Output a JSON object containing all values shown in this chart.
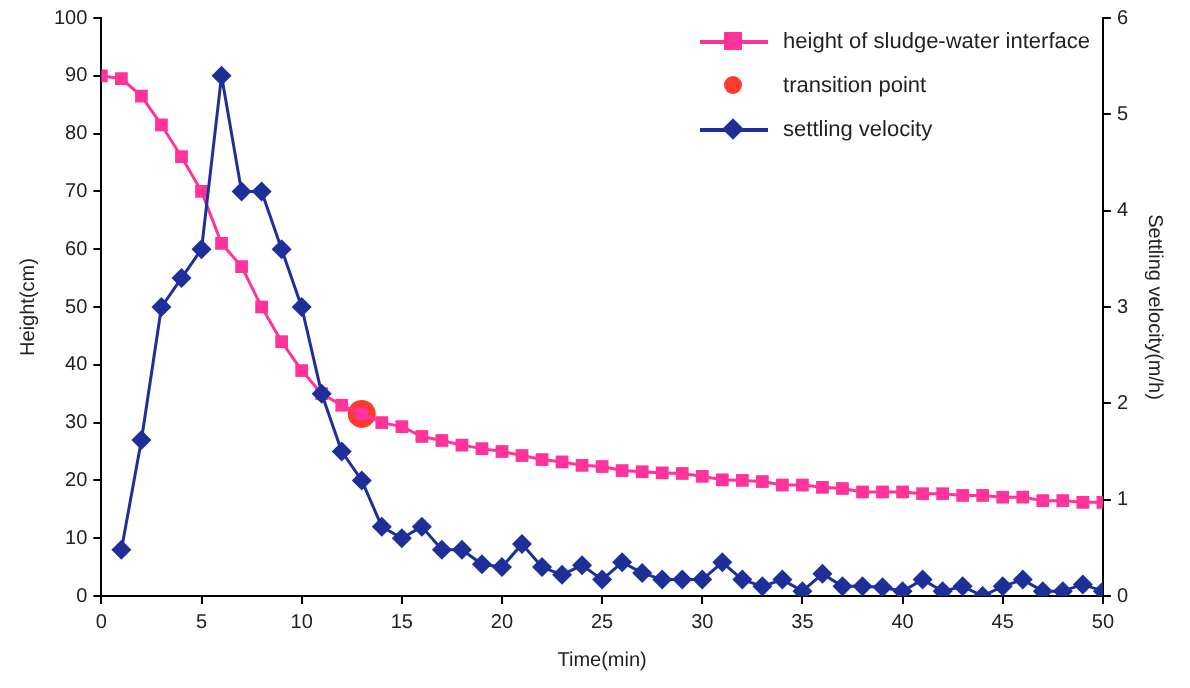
{
  "chart_data": {
    "type": "line",
    "xlabel": "Time(min)",
    "ylabel": "Height(cm)",
    "y2label": "Settling velocity(m/h)",
    "xlim": [
      0,
      50
    ],
    "xticks": [
      0,
      5,
      10,
      15,
      20,
      25,
      30,
      35,
      40,
      45,
      50
    ],
    "ylim": [
      0,
      100
    ],
    "yticks": [
      0,
      10,
      20,
      30,
      40,
      50,
      60,
      70,
      80,
      90,
      100
    ],
    "y2lim": [
      0,
      6
    ],
    "y2ticks": [
      0,
      1,
      2,
      3,
      4,
      5,
      6
    ],
    "grid": false,
    "legend": "top right",
    "series": [
      {
        "name": "height of sludge-water interface",
        "color": "#ff3399",
        "marker": "square",
        "x": [
          0,
          1,
          2,
          3,
          4,
          5,
          6,
          7,
          8,
          9,
          10,
          11,
          12,
          13,
          14,
          15,
          16,
          17,
          18,
          19,
          20,
          21,
          22,
          23,
          24,
          25,
          26,
          27,
          28,
          29,
          30,
          31,
          32,
          33,
          34,
          35,
          36,
          37,
          38,
          39,
          40,
          41,
          42,
          43,
          44,
          45,
          46,
          47,
          48,
          49,
          50
        ],
        "values": [
          90,
          89.5,
          86.5,
          81.5,
          76,
          70,
          61,
          57,
          50,
          44,
          39,
          35,
          33,
          31.5,
          30,
          29.3,
          27.6,
          26.9,
          26.1,
          25.5,
          25,
          24.3,
          23.6,
          23.2,
          22.6,
          22.4,
          21.7,
          21.5,
          21.3,
          21.2,
          20.7,
          20.1,
          20,
          19.8,
          19.2,
          19.2,
          18.8,
          18.6,
          18,
          18,
          18,
          17.7,
          17.7,
          17.4,
          17.4,
          17.1,
          17.1,
          16.5,
          16.5,
          16.2,
          16.2
        ]
      },
      {
        "name": "transition point",
        "type": "scatter",
        "color": "#ff3b30",
        "marker": "circle",
        "x": [
          13
        ],
        "values": [
          31.5
        ]
      },
      {
        "name": "settling velocity",
        "color": "#1f2f9a",
        "marker": "diamond",
        "axis": "y2",
        "x": [
          1,
          2,
          3,
          4,
          5,
          6,
          7,
          8,
          9,
          10,
          11,
          12,
          13,
          14,
          15,
          16,
          17,
          18,
          19,
          20,
          21,
          22,
          23,
          24,
          25,
          26,
          27,
          28,
          29,
          30,
          31,
          32,
          33,
          34,
          35,
          36,
          37,
          38,
          39,
          40,
          41,
          42,
          43,
          44,
          45,
          46,
          47,
          48,
          49,
          50
        ],
        "values": [
          0.48,
          1.62,
          3.0,
          3.3,
          3.6,
          5.4,
          4.2,
          4.2,
          3.6,
          3.0,
          2.1,
          1.5,
          1.2,
          0.72,
          0.6,
          0.72,
          0.48,
          0.48,
          0.33,
          0.3,
          0.54,
          0.3,
          0.22,
          0.32,
          0.17,
          0.35,
          0.24,
          0.17,
          0.17,
          0.17,
          0.35,
          0.17,
          0.1,
          0.17,
          0.05,
          0.23,
          0.1,
          0.1,
          0.09,
          0.05,
          0.17,
          0.05,
          0.1,
          0,
          0.1,
          0.17,
          0.05,
          0.05,
          0.12,
          0.05
        ]
      }
    ]
  }
}
